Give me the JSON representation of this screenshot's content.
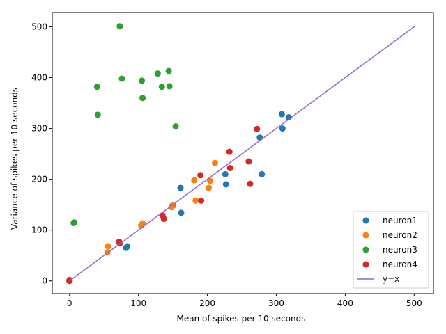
{
  "chart_data": {
    "type": "scatter",
    "xlabel": "Mean of spikes per 10 seconds",
    "ylabel": "Variance of spikes per 10 seconds",
    "xlim": [
      -25,
      528
    ],
    "ylim": [
      -25,
      528
    ],
    "xticks": [
      0,
      100,
      200,
      300,
      400,
      500
    ],
    "yticks": [
      0,
      100,
      200,
      300,
      400,
      500
    ],
    "grid": false,
    "legend_position": "lower-right",
    "series": [
      {
        "name": "neuron1",
        "color": "#1f77b4",
        "points": [
          [
            0,
            0
          ],
          [
            82,
            65
          ],
          [
            84,
            68
          ],
          [
            150,
            148
          ],
          [
            161,
            183
          ],
          [
            162,
            134
          ],
          [
            226,
            210
          ],
          [
            227,
            190
          ],
          [
            276,
            282
          ],
          [
            279,
            210
          ],
          [
            308,
            328
          ],
          [
            309,
            300
          ],
          [
            318,
            322
          ]
        ]
      },
      {
        "name": "neuron2",
        "color": "#ff7f0e",
        "points": [
          [
            0,
            0
          ],
          [
            55,
            56
          ],
          [
            56,
            68
          ],
          [
            104,
            109
          ],
          [
            106,
            113
          ],
          [
            148,
            145
          ],
          [
            149,
            148
          ],
          [
            181,
            198
          ],
          [
            183,
            158
          ],
          [
            202,
            183
          ],
          [
            204,
            197
          ],
          [
            211,
            232
          ]
        ]
      },
      {
        "name": "neuron3",
        "color": "#2ca02c",
        "points": [
          [
            0,
            2
          ],
          [
            6,
            114
          ],
          [
            7,
            115
          ],
          [
            40,
            382
          ],
          [
            41,
            327
          ],
          [
            73,
            501
          ],
          [
            76,
            398
          ],
          [
            105,
            394
          ],
          [
            106,
            360
          ],
          [
            128,
            408
          ],
          [
            134,
            382
          ],
          [
            144,
            413
          ],
          [
            145,
            383
          ],
          [
            154,
            304
          ]
        ]
      },
      {
        "name": "neuron4",
        "color": "#d62728",
        "points": [
          [
            0,
            0
          ],
          [
            72,
            77
          ],
          [
            73,
            74
          ],
          [
            135,
            129
          ],
          [
            137,
            122
          ],
          [
            190,
            208
          ],
          [
            191,
            158
          ],
          [
            232,
            254
          ],
          [
            233,
            222
          ],
          [
            260,
            235
          ],
          [
            262,
            191
          ],
          [
            272,
            299
          ]
        ]
      }
    ],
    "line": {
      "name": "y=x",
      "color": "#9467bd",
      "points": [
        [
          0,
          0
        ],
        [
          502,
          502
        ]
      ]
    }
  }
}
